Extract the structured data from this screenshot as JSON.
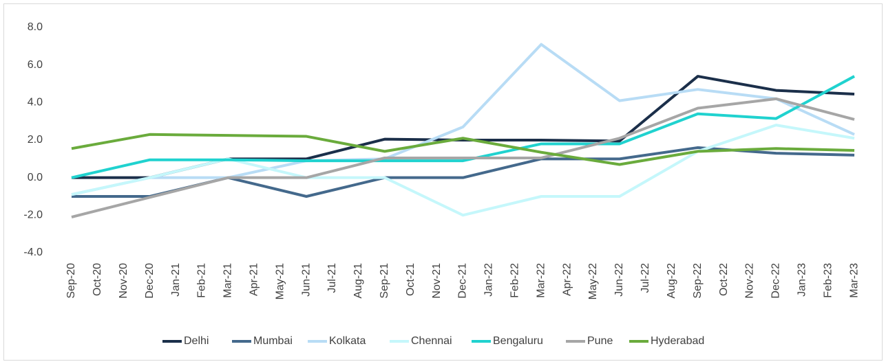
{
  "chart_data": {
    "type": "line",
    "categories": [
      "Sep-20",
      "Oct-20",
      "Nov-20",
      "Dec-20",
      "Jan-21",
      "Feb-21",
      "Mar-21",
      "Apr-21",
      "May-21",
      "Jun-21",
      "Jul-21",
      "Aug-21",
      "Sep-21",
      "Oct-21",
      "Nov-21",
      "Dec-21",
      "Jan-22",
      "Feb-22",
      "Mar-22",
      "Apr-22",
      "May-22",
      "Jun-22",
      "Jul-22",
      "Aug-22",
      "Sep-22",
      "Oct-22",
      "Nov-22",
      "Dec-22",
      "Jan-23",
      "Feb-23",
      "Mar-23"
    ],
    "span_gaps": true,
    "ylim": [
      -4,
      8
    ],
    "yticks": [
      {
        "value": -4,
        "label": "-4.0"
      },
      {
        "value": -2,
        "label": "-2.0"
      },
      {
        "value": 0,
        "label": "0.0"
      },
      {
        "value": 2,
        "label": "2.0"
      },
      {
        "value": 4,
        "label": "4.0"
      },
      {
        "value": 6,
        "label": "6.0"
      },
      {
        "value": 8,
        "label": "8.0"
      }
    ],
    "legend": "bottom",
    "series": [
      {
        "name": "Delhi",
        "color": "#1b2f4a",
        "values": [
          0,
          null,
          null,
          0,
          null,
          null,
          1.0,
          null,
          null,
          1.0,
          null,
          null,
          2.05,
          null,
          null,
          2.0,
          null,
          null,
          2.0,
          null,
          null,
          1.95,
          null,
          null,
          5.4,
          null,
          null,
          4.65,
          null,
          null,
          4.45
        ]
      },
      {
        "name": "Mumbai",
        "color": "#44698c",
        "values": [
          -1.0,
          null,
          null,
          -1.0,
          null,
          null,
          0,
          null,
          null,
          -1.0,
          null,
          null,
          0,
          null,
          null,
          0,
          null,
          null,
          1.0,
          null,
          null,
          1.0,
          null,
          null,
          1.6,
          null,
          null,
          1.3,
          null,
          null,
          1.2
        ]
      },
      {
        "name": "Kolkata",
        "color": "#b8dcf5",
        "values": [
          -0.9,
          null,
          null,
          0,
          null,
          null,
          0,
          null,
          null,
          0.9,
          null,
          null,
          1.0,
          null,
          null,
          2.7,
          null,
          null,
          7.1,
          null,
          null,
          4.1,
          null,
          null,
          4.7,
          null,
          null,
          4.2,
          null,
          null,
          2.3
        ]
      },
      {
        "name": "Chennai",
        "color": "#c5f7fb",
        "values": [
          -0.9,
          null,
          null,
          0,
          null,
          null,
          1.0,
          null,
          null,
          0,
          null,
          null,
          0,
          null,
          null,
          -2.0,
          null,
          null,
          -1.0,
          null,
          null,
          -1.0,
          null,
          null,
          1.4,
          null,
          null,
          2.8,
          null,
          null,
          2.1
        ]
      },
      {
        "name": "Bengaluru",
        "color": "#20d2cf",
        "values": [
          0,
          null,
          null,
          0.95,
          null,
          null,
          0.95,
          null,
          null,
          0.9,
          null,
          null,
          0.9,
          null,
          null,
          0.9,
          null,
          null,
          1.8,
          null,
          null,
          1.8,
          null,
          null,
          3.4,
          null,
          null,
          3.15,
          null,
          null,
          5.4
        ]
      },
      {
        "name": "Pune",
        "color": "#a6a6a6",
        "values": [
          -2.1,
          null,
          null,
          -1.05,
          null,
          null,
          0,
          null,
          null,
          0,
          null,
          null,
          1.05,
          null,
          null,
          1.05,
          null,
          null,
          1.05,
          null,
          null,
          2.1,
          null,
          null,
          3.7,
          null,
          null,
          4.2,
          null,
          null,
          3.1
        ]
      },
      {
        "name": "Hyderabad",
        "color": "#6aab3c",
        "values": [
          1.55,
          null,
          null,
          2.3,
          null,
          null,
          2.25,
          null,
          null,
          2.2,
          null,
          null,
          1.4,
          null,
          null,
          2.1,
          null,
          null,
          1.35,
          null,
          null,
          0.7,
          null,
          null,
          1.4,
          null,
          null,
          1.55,
          null,
          null,
          1.45
        ]
      }
    ]
  }
}
